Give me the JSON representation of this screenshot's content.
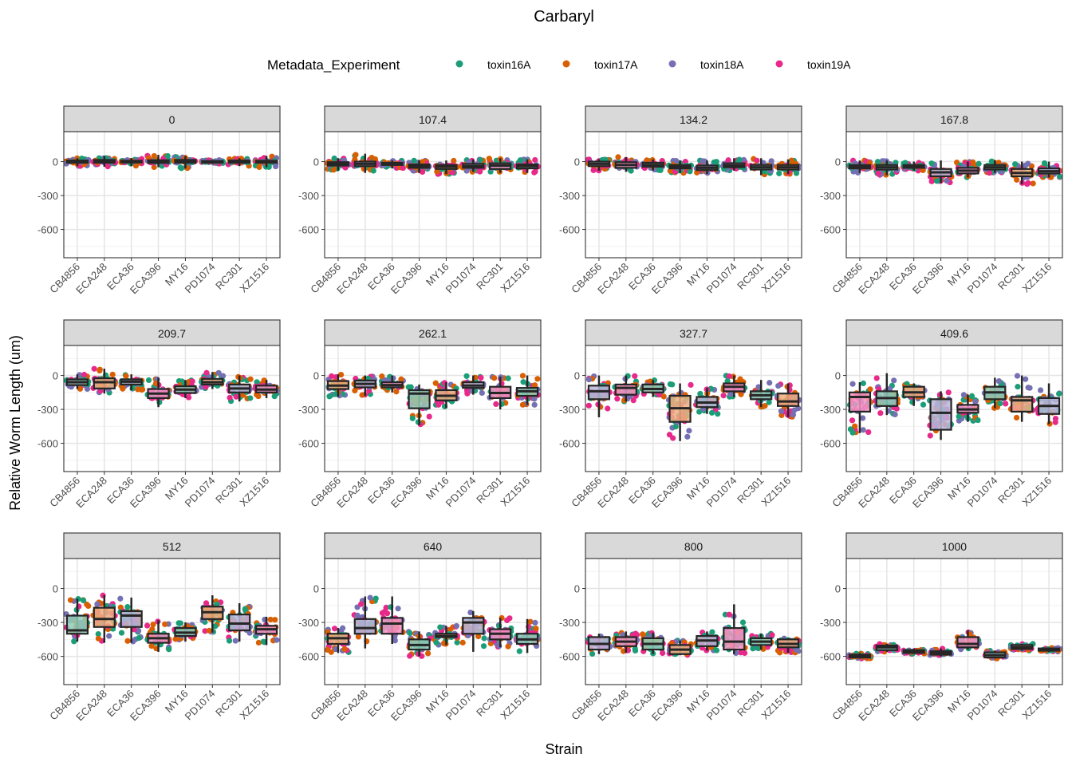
{
  "chart_data": {
    "type": "box",
    "title": "Carbaryl",
    "xlabel": "Strain",
    "ylabel": "Relative Worm Length (um)",
    "ylim": [
      -850,
      265
    ],
    "yticks": [
      0,
      -300,
      -600
    ],
    "ytick_labels": [
      "0",
      "-300",
      "-600"
    ],
    "grid": true,
    "legend": {
      "title": "Metadata_Experiment",
      "position": "top",
      "entries": [
        {
          "name": "toxin16A",
          "color": "#1B9E77"
        },
        {
          "name": "toxin17A",
          "color": "#D95F02"
        },
        {
          "name": "toxin18A",
          "color": "#7570B3"
        },
        {
          "name": "toxin19A",
          "color": "#E7298A"
        }
      ]
    },
    "categories": [
      "CB4856",
      "ECA248",
      "ECA36",
      "ECA396",
      "MY16",
      "PD1074",
      "RC301",
      "XZ1516"
    ],
    "facets": [
      {
        "label": "0",
        "boxes": [
          {
            "median": 0,
            "q1": -10,
            "q3": 10,
            "lo": -40,
            "hi": 30
          },
          {
            "median": 5,
            "q1": -10,
            "q3": 15,
            "lo": -45,
            "hi": 50
          },
          {
            "median": 0,
            "q1": -8,
            "q3": 8,
            "lo": -40,
            "hi": 30
          },
          {
            "median": 0,
            "q1": -12,
            "q3": 12,
            "lo": -50,
            "hi": 60
          },
          {
            "median": 5,
            "q1": -10,
            "q3": 15,
            "lo": -60,
            "hi": 50
          },
          {
            "median": 0,
            "q1": -5,
            "q3": 5,
            "lo": -20,
            "hi": 15
          },
          {
            "median": 0,
            "q1": -10,
            "q3": 10,
            "lo": -40,
            "hi": 30
          },
          {
            "median": 0,
            "q1": -10,
            "q3": 8,
            "lo": -50,
            "hi": 50
          }
        ]
      },
      {
        "label": "107.4",
        "boxes": [
          {
            "median": -20,
            "q1": -35,
            "q3": -5,
            "lo": -80,
            "hi": 30
          },
          {
            "median": -20,
            "q1": -40,
            "q3": 0,
            "lo": -100,
            "hi": 70
          },
          {
            "median": -20,
            "q1": -30,
            "q3": -10,
            "lo": -60,
            "hi": 10
          },
          {
            "median": -40,
            "q1": -55,
            "q3": -25,
            "lo": -100,
            "hi": 10
          },
          {
            "median": -45,
            "q1": -65,
            "q3": -30,
            "lo": -110,
            "hi": 10
          },
          {
            "median": -40,
            "q1": -55,
            "q3": -20,
            "lo": -90,
            "hi": 20
          },
          {
            "median": -35,
            "q1": -65,
            "q3": -15,
            "lo": -100,
            "hi": 30
          },
          {
            "median": -40,
            "q1": -60,
            "q3": -25,
            "lo": -100,
            "hi": 20
          }
        ]
      },
      {
        "label": "134.2",
        "boxes": [
          {
            "median": -20,
            "q1": -40,
            "q3": 0,
            "lo": -80,
            "hi": 20
          },
          {
            "median": -30,
            "q1": -55,
            "q3": -5,
            "lo": -90,
            "hi": 40
          },
          {
            "median": -30,
            "q1": -45,
            "q3": -10,
            "lo": -80,
            "hi": 20
          },
          {
            "median": -45,
            "q1": -60,
            "q3": -30,
            "lo": -100,
            "hi": 10
          },
          {
            "median": -55,
            "q1": -75,
            "q3": -35,
            "lo": -110,
            "hi": 10
          },
          {
            "median": -35,
            "q1": -50,
            "q3": -15,
            "lo": -80,
            "hi": 30
          },
          {
            "median": -50,
            "q1": -70,
            "q3": -30,
            "lo": -120,
            "hi": 30
          },
          {
            "median": -50,
            "q1": -70,
            "q3": -30,
            "lo": -110,
            "hi": 20
          }
        ]
      },
      {
        "label": "167.8",
        "boxes": [
          {
            "median": -45,
            "q1": -60,
            "q3": -30,
            "lo": -100,
            "hi": 10
          },
          {
            "median": -50,
            "q1": -70,
            "q3": -30,
            "lo": -120,
            "hi": 10
          },
          {
            "median": -45,
            "q1": -55,
            "q3": -30,
            "lo": -80,
            "hi": 0
          },
          {
            "median": -95,
            "q1": -130,
            "q3": -65,
            "lo": -190,
            "hi": 10
          },
          {
            "median": -80,
            "q1": -105,
            "q3": -55,
            "lo": -140,
            "hi": 0
          },
          {
            "median": -50,
            "q1": -70,
            "q3": -30,
            "lo": -100,
            "hi": 10
          },
          {
            "median": -100,
            "q1": -130,
            "q3": -65,
            "lo": -200,
            "hi": 0
          },
          {
            "median": -85,
            "q1": -105,
            "q3": -60,
            "lo": -140,
            "hi": 0
          }
        ]
      },
      {
        "label": "209.7",
        "boxes": [
          {
            "median": -60,
            "q1": -85,
            "q3": -35,
            "lo": -120,
            "hi": 10
          },
          {
            "median": -60,
            "q1": -115,
            "q3": -25,
            "lo": -160,
            "hi": 60
          },
          {
            "median": -55,
            "q1": -80,
            "q3": -35,
            "lo": -130,
            "hi": 10
          },
          {
            "median": -160,
            "q1": -200,
            "q3": -120,
            "lo": -280,
            "hi": -20
          },
          {
            "median": -125,
            "q1": -155,
            "q3": -95,
            "lo": -200,
            "hi": -40
          },
          {
            "median": -60,
            "q1": -80,
            "q3": -30,
            "lo": -120,
            "hi": 30
          },
          {
            "median": -115,
            "q1": -150,
            "q3": -80,
            "lo": -230,
            "hi": 0
          },
          {
            "median": -125,
            "q1": -150,
            "q3": -90,
            "lo": -200,
            "hi": -40
          }
        ]
      },
      {
        "label": "262.1",
        "boxes": [
          {
            "median": -90,
            "q1": -120,
            "q3": -50,
            "lo": -190,
            "hi": 10
          },
          {
            "median": -75,
            "q1": -105,
            "q3": -45,
            "lo": -180,
            "hi": 0
          },
          {
            "median": -85,
            "q1": -105,
            "q3": -60,
            "lo": -150,
            "hi": 0
          },
          {
            "median": -160,
            "q1": -290,
            "q3": -130,
            "lo": -440,
            "hi": -80
          },
          {
            "median": -180,
            "q1": -220,
            "q3": -130,
            "lo": -290,
            "hi": -60
          },
          {
            "median": -90,
            "q1": -110,
            "q3": -60,
            "lo": -170,
            "hi": 0
          },
          {
            "median": -155,
            "q1": -200,
            "q3": -100,
            "lo": -300,
            "hi": -10
          },
          {
            "median": -140,
            "q1": -180,
            "q3": -110,
            "lo": -260,
            "hi": 0
          }
        ]
      },
      {
        "label": "327.7",
        "boxes": [
          {
            "median": -140,
            "q1": -210,
            "q3": -90,
            "lo": -370,
            "hi": 0
          },
          {
            "median": -110,
            "q1": -170,
            "q3": -80,
            "lo": -230,
            "hi": 0
          },
          {
            "median": -120,
            "q1": -150,
            "q3": -80,
            "lo": -190,
            "hi": -40
          },
          {
            "median": -290,
            "q1": -410,
            "q3": -180,
            "lo": -580,
            "hi": -70
          },
          {
            "median": -240,
            "q1": -280,
            "q3": -190,
            "lo": -340,
            "hi": -110
          },
          {
            "median": -100,
            "q1": -140,
            "q3": -70,
            "lo": -190,
            "hi": 0
          },
          {
            "median": -175,
            "q1": -210,
            "q3": -140,
            "lo": -280,
            "hi": -40
          },
          {
            "median": -230,
            "q1": -270,
            "q3": -160,
            "lo": -370,
            "hi": -70
          }
        ]
      },
      {
        "label": "409.6",
        "boxes": [
          {
            "median": -190,
            "q1": -320,
            "q3": -150,
            "lo": -510,
            "hi": -60
          },
          {
            "median": -200,
            "q1": -270,
            "q3": -140,
            "lo": -350,
            "hi": 20
          },
          {
            "median": -150,
            "q1": -190,
            "q3": -100,
            "lo": -270,
            "hi": -70
          },
          {
            "median": -330,
            "q1": -480,
            "q3": -210,
            "lo": -570,
            "hi": -140
          },
          {
            "median": -300,
            "q1": -330,
            "q3": -260,
            "lo": -410,
            "hi": -170
          },
          {
            "median": -150,
            "q1": -210,
            "q3": -100,
            "lo": -290,
            "hi": -20
          },
          {
            "median": -220,
            "q1": -320,
            "q3": -190,
            "lo": -410,
            "hi": 0
          },
          {
            "median": -270,
            "q1": -340,
            "q3": -200,
            "lo": -430,
            "hi": -70
          }
        ]
      },
      {
        "label": "512",
        "boxes": [
          {
            "median": -370,
            "q1": -400,
            "q3": -240,
            "lo": -470,
            "hi": -90
          },
          {
            "median": -270,
            "q1": -340,
            "q3": -170,
            "lo": -480,
            "hi": -60
          },
          {
            "median": -240,
            "q1": -340,
            "q3": -200,
            "lo": -480,
            "hi": -80
          },
          {
            "median": -440,
            "q1": -480,
            "q3": -400,
            "lo": -560,
            "hi": -280
          },
          {
            "median": -390,
            "q1": -420,
            "q3": -350,
            "lo": -470,
            "hi": -300
          },
          {
            "median": -210,
            "q1": -270,
            "q3": -160,
            "lo": -390,
            "hi": -60
          },
          {
            "median": -310,
            "q1": -370,
            "q3": -230,
            "lo": -470,
            "hi": -130
          },
          {
            "median": -360,
            "q1": -400,
            "q3": -330,
            "lo": -500,
            "hi": -250
          }
        ]
      },
      {
        "label": "640",
        "boxes": [
          {
            "median": -440,
            "q1": -490,
            "q3": -400,
            "lo": -570,
            "hi": -350
          },
          {
            "median": -350,
            "q1": -400,
            "q3": -270,
            "lo": -530,
            "hi": -70
          },
          {
            "median": -310,
            "q1": -400,
            "q3": -260,
            "lo": -490,
            "hi": -70
          },
          {
            "median": -500,
            "q1": -540,
            "q3": -450,
            "lo": -600,
            "hi": -380
          },
          {
            "median": -420,
            "q1": -430,
            "q3": -400,
            "lo": -500,
            "hi": -330
          },
          {
            "median": -300,
            "q1": -400,
            "q3": -260,
            "lo": -560,
            "hi": -200
          },
          {
            "median": -400,
            "q1": -450,
            "q3": -360,
            "lo": -520,
            "hi": -260
          },
          {
            "median": -450,
            "q1": -490,
            "q3": -400,
            "lo": -570,
            "hi": -270
          }
        ]
      },
      {
        "label": "800",
        "boxes": [
          {
            "median": -490,
            "q1": -540,
            "q3": -430,
            "lo": -580,
            "hi": -400
          },
          {
            "median": -470,
            "q1": -510,
            "q3": -430,
            "lo": -570,
            "hi": -380
          },
          {
            "median": -490,
            "q1": -540,
            "q3": -440,
            "lo": -580,
            "hi": -390
          },
          {
            "median": -540,
            "q1": -580,
            "q3": -500,
            "lo": -590,
            "hi": -460
          },
          {
            "median": -460,
            "q1": -510,
            "q3": -420,
            "lo": -550,
            "hi": -380
          },
          {
            "median": -470,
            "q1": -540,
            "q3": -350,
            "lo": -580,
            "hi": -140
          },
          {
            "median": -470,
            "q1": -500,
            "q3": -440,
            "lo": -540,
            "hi": -400
          },
          {
            "median": -490,
            "q1": -520,
            "q3": -450,
            "lo": -570,
            "hi": -440
          }
        ]
      },
      {
        "label": "1000",
        "boxes": [
          {
            "median": -600,
            "q1": -610,
            "q3": -585,
            "lo": -620,
            "hi": -570
          },
          {
            "median": -520,
            "q1": -545,
            "q3": -505,
            "lo": -560,
            "hi": -490
          },
          {
            "median": -560,
            "q1": -570,
            "q3": -545,
            "lo": -580,
            "hi": -530
          },
          {
            "median": -570,
            "q1": -585,
            "q3": -555,
            "lo": -600,
            "hi": -530
          },
          {
            "median": -490,
            "q1": -520,
            "q3": -430,
            "lo": -540,
            "hi": -370
          },
          {
            "median": -590,
            "q1": -610,
            "q3": -565,
            "lo": -620,
            "hi": -550
          },
          {
            "median": -520,
            "q1": -535,
            "q3": -500,
            "lo": -550,
            "hi": -490
          },
          {
            "median": -540,
            "q1": -550,
            "q3": -530,
            "lo": -560,
            "hi": -525
          }
        ]
      }
    ]
  }
}
